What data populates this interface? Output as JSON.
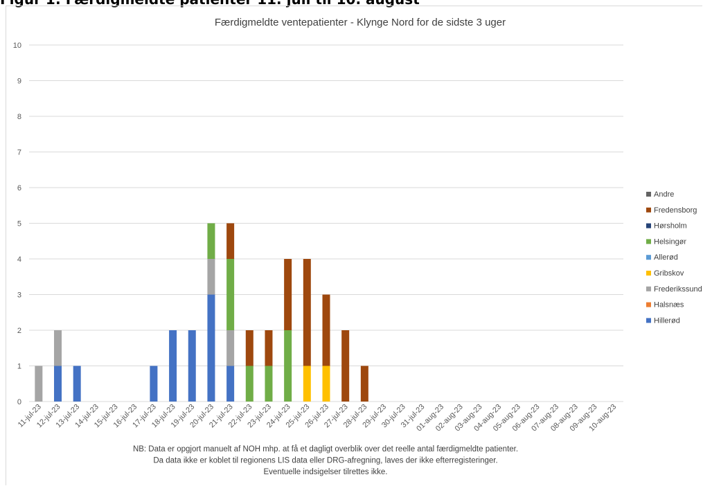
{
  "figure_heading": "Figur 1: Færdigmeldte patienter 11. juli til 10. august",
  "chart_data": {
    "type": "bar",
    "stacked": true,
    "title": "Færdigmeldte ventepatienter - Klynge Nord  for de sidste 3 uger",
    "xlabel": "",
    "ylabel": "",
    "ylim": [
      0,
      10
    ],
    "yticks": [
      0,
      1,
      2,
      3,
      4,
      5,
      6,
      7,
      8,
      9,
      10
    ],
    "grid": true,
    "legend_position": "right",
    "categories": [
      "11-jul-23",
      "12-jul-23",
      "13-jul-23",
      "14-jul-23",
      "15-jul-23",
      "16-jul-23",
      "17-jul-23",
      "18-jul-23",
      "19-jul-23",
      "20-jul-23",
      "21-jul-23",
      "22-jul-23",
      "23-jul-23",
      "24-jul-23",
      "25-jul-23",
      "26-jul-23",
      "27-jul-23",
      "28-jul-23",
      "29-jul-23",
      "30-jul-23",
      "31-jul-23",
      "01-aug-23",
      "02-aug-23",
      "03-aug-23",
      "04-aug-23",
      "05-aug-23",
      "06-aug-23",
      "07-aug-23",
      "08-aug-23",
      "09-aug-23",
      "10-aug-23"
    ],
    "series": [
      {
        "name": "Hillerød",
        "color": "#4472c4",
        "values": [
          0,
          1,
          1,
          0,
          0,
          0,
          1,
          2,
          2,
          3,
          1,
          0,
          0,
          0,
          0,
          0,
          0,
          0,
          0,
          0,
          0,
          0,
          0,
          0,
          0,
          0,
          0,
          0,
          0,
          0,
          0
        ]
      },
      {
        "name": "Halsnæs",
        "color": "#ed7d31",
        "values": [
          0,
          0,
          0,
          0,
          0,
          0,
          0,
          0,
          0,
          0,
          0,
          0,
          0,
          0,
          0,
          0,
          0,
          0,
          0,
          0,
          0,
          0,
          0,
          0,
          0,
          0,
          0,
          0,
          0,
          0,
          0
        ]
      },
      {
        "name": "Frederikssund",
        "color": "#a5a5a5",
        "values": [
          1,
          1,
          0,
          0,
          0,
          0,
          0,
          0,
          0,
          1,
          1,
          0,
          0,
          0,
          0,
          0,
          0,
          0,
          0,
          0,
          0,
          0,
          0,
          0,
          0,
          0,
          0,
          0,
          0,
          0,
          0
        ]
      },
      {
        "name": "Gribskov",
        "color": "#ffc000",
        "values": [
          0,
          0,
          0,
          0,
          0,
          0,
          0,
          0,
          0,
          0,
          0,
          0,
          0,
          0,
          1,
          1,
          0,
          0,
          0,
          0,
          0,
          0,
          0,
          0,
          0,
          0,
          0,
          0,
          0,
          0,
          0
        ]
      },
      {
        "name": "Allerød",
        "color": "#5b9bd5",
        "values": [
          0,
          0,
          0,
          0,
          0,
          0,
          0,
          0,
          0,
          0,
          0,
          0,
          0,
          0,
          0,
          0,
          0,
          0,
          0,
          0,
          0,
          0,
          0,
          0,
          0,
          0,
          0,
          0,
          0,
          0,
          0
        ]
      },
      {
        "name": "Helsingør",
        "color": "#70ad47",
        "values": [
          0,
          0,
          0,
          0,
          0,
          0,
          0,
          0,
          0,
          1,
          2,
          1,
          1,
          2,
          0,
          0,
          0,
          0,
          0,
          0,
          0,
          0,
          0,
          0,
          0,
          0,
          0,
          0,
          0,
          0,
          0
        ]
      },
      {
        "name": "Hørsholm",
        "color": "#264478",
        "values": [
          0,
          0,
          0,
          0,
          0,
          0,
          0,
          0,
          0,
          0,
          0,
          0,
          0,
          0,
          0,
          0,
          0,
          0,
          0,
          0,
          0,
          0,
          0,
          0,
          0,
          0,
          0,
          0,
          0,
          0,
          0
        ]
      },
      {
        "name": "Fredensborg",
        "color": "#9e480e",
        "values": [
          0,
          0,
          0,
          0,
          0,
          0,
          0,
          0,
          0,
          0,
          1,
          1,
          1,
          2,
          3,
          2,
          2,
          1,
          0,
          0,
          0,
          0,
          0,
          0,
          0,
          0,
          0,
          0,
          0,
          0,
          0
        ]
      },
      {
        "name": "Andre",
        "color": "#636363",
        "values": [
          0,
          0,
          0,
          0,
          0,
          0,
          0,
          0,
          0,
          0,
          0,
          0,
          0,
          0,
          0,
          0,
          0,
          0,
          0,
          0,
          0,
          0,
          0,
          0,
          0,
          0,
          0,
          0,
          0,
          0,
          0
        ]
      }
    ],
    "legend_order": [
      "Andre",
      "Fredensborg",
      "Hørsholm",
      "Helsingør",
      "Allerød",
      "Gribskov",
      "Frederikssund",
      "Halsnæs",
      "Hillerød"
    ],
    "notes": [
      "NB: Data er opgjort manuelt af NOH mhp. at få et dagligt overblik over det reelle antal færdigmeldte patienter.",
      "Da data ikke er koblet til regionens LIS data eller DRG-afregning, laves der ikke efterregisteringer.",
      "Eventuelle indsigelser tilrettes ikke."
    ]
  }
}
